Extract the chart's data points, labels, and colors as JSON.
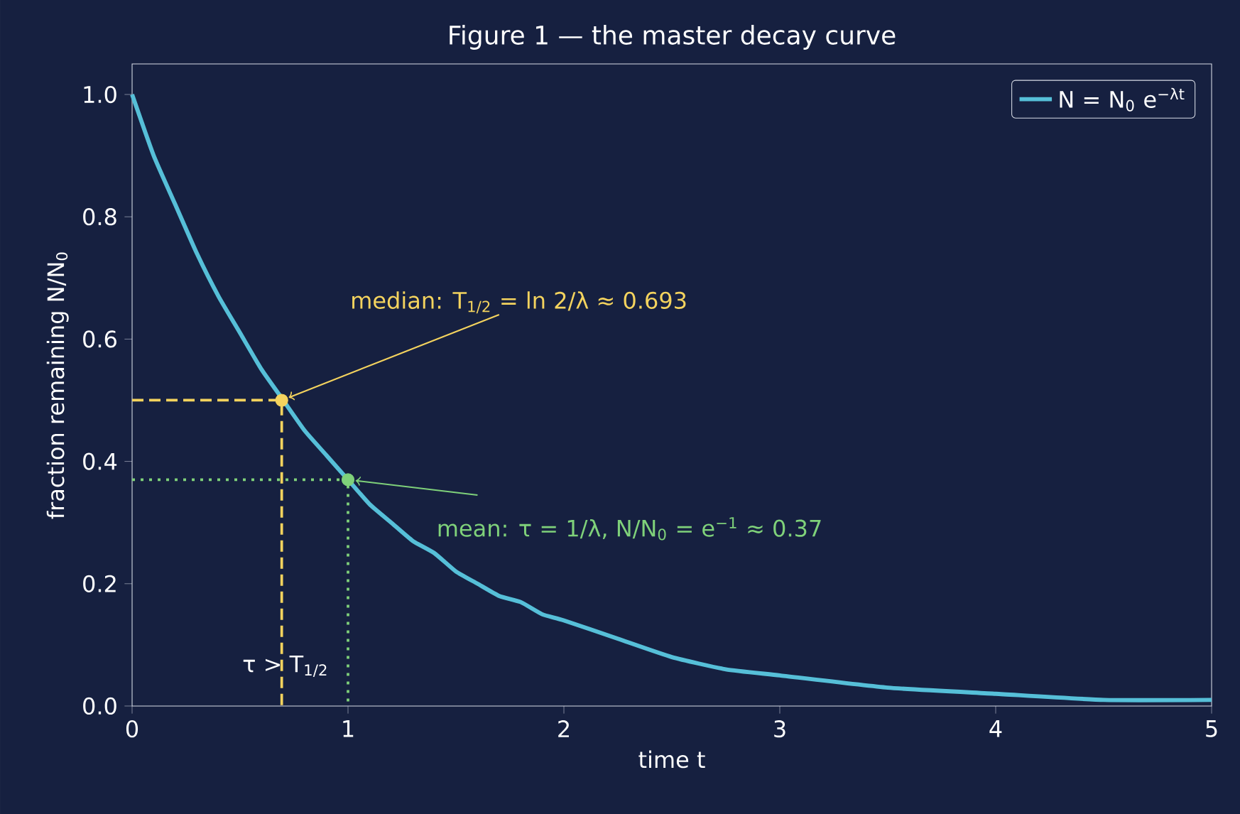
{
  "chart_data": {
    "type": "line",
    "title": "Figure 1 — the master decay curve",
    "xlabel": "time  t",
    "ylabel": "fraction remaining  N/N$_{0}$",
    "xlim": [
      0,
      5
    ],
    "ylim": [
      0,
      1.05
    ],
    "xticks": [
      0,
      1,
      2,
      3,
      4,
      5
    ],
    "yticks": [
      {
        "value": 0,
        "label": "0.0"
      },
      {
        "value": 0.2,
        "label": "0.2"
      },
      {
        "value": 0.4,
        "label": "0.4"
      },
      {
        "value": 0.6,
        "label": "0.6"
      },
      {
        "value": 0.8,
        "label": "0.8"
      },
      {
        "value": 1.0,
        "label": "1.0"
      }
    ],
    "grid": false,
    "legend": "top right",
    "series": [
      {
        "name": "N = N$_{0}$ e$^{−λt}$",
        "color": "#56bfd8",
        "line_style": "solid",
        "marker": "none",
        "x": [
          0,
          0.1,
          0.2,
          0.3,
          0.4,
          0.5,
          0.6,
          0.7,
          0.8,
          0.9,
          1.0,
          1.1,
          1.2,
          1.3,
          1.4,
          1.5,
          1.6,
          1.7,
          1.8,
          1.9,
          2.0,
          2.25,
          2.5,
          2.75,
          3.0,
          3.5,
          4.0,
          4.5,
          5.0
        ],
        "values": [
          1.0,
          0.9,
          0.82,
          0.74,
          0.67,
          0.61,
          0.55,
          0.5,
          0.45,
          0.41,
          0.37,
          0.33,
          0.3,
          0.27,
          0.25,
          0.22,
          0.2,
          0.18,
          0.17,
          0.15,
          0.14,
          0.11,
          0.08,
          0.06,
          0.05,
          0.03,
          0.02,
          0.01,
          0.01
        ]
      },
      {
        "type": "line",
        "color": "#f4d35e",
        "line_style": "dashed",
        "marker": "none",
        "x": [
          0,
          0.693,
          0.693
        ],
        "values": [
          0.5,
          0.5,
          0
        ]
      },
      {
        "type": "line",
        "color": "#7fd17a",
        "line_style": "dotted",
        "marker": "none",
        "x": [
          0,
          1,
          1
        ],
        "values": [
          0.37,
          0.37,
          0
        ]
      },
      {
        "type": "scatter",
        "color": "#f4d35e",
        "marker": "circle",
        "x": [
          0.693
        ],
        "values": [
          0.5
        ]
      },
      {
        "type": "scatter",
        "color": "#7fd17a",
        "marker": "circle",
        "x": [
          1
        ],
        "values": [
          0.37
        ]
      }
    ],
    "annotations": [
      {
        "text": "median: T$_{1/2}$ = ln 2/λ ≈ 0.693",
        "x": 0.693,
        "y": 0.5
      },
      {
        "text": "mean: τ = 1/λ, N/N$_{0}$ = e$^{−1}$ ≈ 0.37",
        "x": 1,
        "y": 0.37
      },
      "τ > T$_{1/2}$"
    ]
  }
}
